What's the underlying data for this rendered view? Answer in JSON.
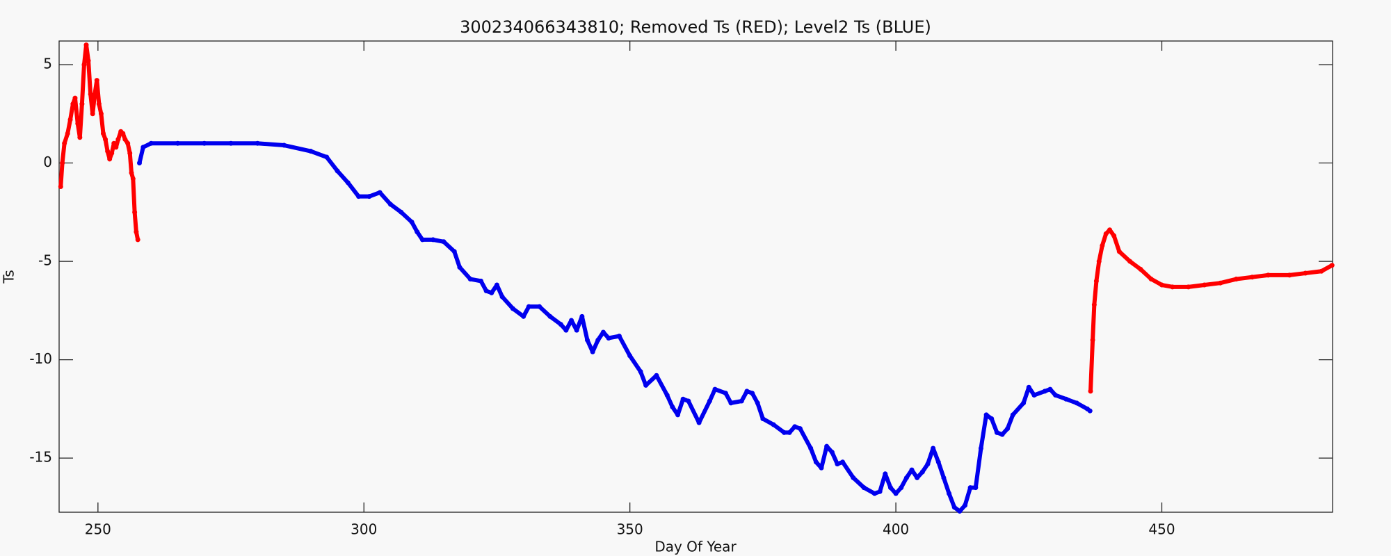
{
  "chart_data": {
    "type": "scatter",
    "title": "300234066343810; Removed Ts (RED); Level2 Ts (BLUE)",
    "x_label": "Day Of Year",
    "y_label": "Ts",
    "xlim": [
      242.7,
      482.1
    ],
    "ylim": [
      -17.75,
      6.2
    ],
    "xticks": [
      250,
      300,
      350,
      400,
      450
    ],
    "yticks": [
      -15,
      -10,
      -5,
      0,
      5
    ],
    "series": [
      {
        "color": "#ff0000",
        "x": [
          243,
          243.3,
          243.7,
          244.3,
          244.8,
          245.3,
          245.7,
          246.2,
          246.6,
          247,
          247.4,
          247.8,
          248.2,
          248.6,
          249,
          249.4,
          249.8,
          250.2,
          250.6,
          251,
          251.4,
          251.8,
          252.2,
          252.6,
          253,
          253.4,
          253.8,
          254.3,
          254.7,
          255.1,
          255.6,
          256,
          256.3,
          256.6,
          256.9,
          257.2,
          257.5
        ],
        "values": [
          -1.2,
          0,
          1,
          1.5,
          2.2,
          3,
          3.3,
          2,
          1.3,
          3,
          5,
          6,
          5.2,
          3.5,
          2.5,
          3.5,
          4.2,
          3,
          2.5,
          1.5,
          1.2,
          0.6,
          0.2,
          0.5,
          1,
          0.8,
          1.2,
          1.6,
          1.5,
          1.2,
          1,
          0.5,
          -0.5,
          -0.8,
          -2.5,
          -3.5,
          -3.9
        ]
      },
      {
        "color": "#0000ee",
        "x": [
          257.8,
          258.5,
          260,
          265,
          270,
          275,
          280,
          285,
          290,
          293,
          295,
          297,
          299,
          301,
          303,
          305,
          307,
          309,
          310,
          311,
          313,
          315,
          317,
          318,
          320,
          322,
          323,
          324,
          325,
          326,
          328,
          330,
          331,
          333,
          335,
          337,
          338,
          339,
          340,
          341,
          342,
          343,
          344,
          345,
          346,
          348,
          350,
          352,
          353,
          355,
          357,
          358,
          359,
          360,
          361,
          363,
          365,
          366,
          368,
          369,
          371,
          372,
          373,
          374,
          375,
          377,
          379,
          380,
          381,
          382,
          384,
          385,
          386,
          387,
          388,
          389,
          390,
          392,
          394,
          396,
          397,
          398,
          399,
          400,
          401,
          402,
          403,
          404,
          405,
          406,
          407,
          408,
          409,
          410,
          411,
          412,
          413,
          414,
          415,
          416,
          417,
          418,
          419,
          420,
          421,
          422,
          424,
          425,
          426,
          428,
          429,
          430,
          432,
          434,
          436,
          436.5
        ],
        "values": [
          0,
          0.8,
          1,
          1,
          1,
          1,
          1,
          0.9,
          0.6,
          0.3,
          -0.4,
          -1,
          -1.7,
          -1.7,
          -1.5,
          -2.1,
          -2.5,
          -3,
          -3.5,
          -3.9,
          -3.9,
          -4,
          -4.5,
          -5.3,
          -5.9,
          -6,
          -6.5,
          -6.6,
          -6.2,
          -6.8,
          -7.4,
          -7.8,
          -7.3,
          -7.3,
          -7.8,
          -8.2,
          -8.5,
          -8,
          -8.5,
          -7.8,
          -9,
          -9.6,
          -9,
          -8.6,
          -8.9,
          -8.8,
          -9.8,
          -10.6,
          -11.3,
          -10.8,
          -11.8,
          -12.4,
          -12.8,
          -12,
          -12.1,
          -13.2,
          -12.1,
          -11.5,
          -11.7,
          -12.2,
          -12.1,
          -11.6,
          -11.7,
          -12.2,
          -13,
          -13.3,
          -13.7,
          -13.7,
          -13.4,
          -13.5,
          -14.5,
          -15.2,
          -15.5,
          -14.4,
          -14.7,
          -15.3,
          -15.2,
          -16,
          -16.5,
          -16.8,
          -16.7,
          -15.8,
          -16.5,
          -16.8,
          -16.5,
          -16,
          -15.6,
          -16,
          -15.7,
          -15.3,
          -14.5,
          -15.2,
          -16,
          -16.8,
          -17.5,
          -17.7,
          -17.4,
          -16.5,
          -16.5,
          -14.5,
          -12.8,
          -13,
          -13.7,
          -13.8,
          -13.5,
          -12.8,
          -12.2,
          -11.4,
          -11.8,
          -11.6,
          -11.5,
          -11.8,
          -12,
          -12.2,
          -12.5,
          -12.6
        ]
      },
      {
        "color": "#ff0000",
        "x": [
          436.6,
          437,
          437.3,
          437.7,
          438.2,
          438.8,
          439.5,
          440.2,
          441,
          442,
          444,
          446,
          448,
          450,
          452,
          455,
          458,
          461,
          464,
          467,
          470,
          474,
          477,
          480,
          482
        ],
        "values": [
          -11.6,
          -9,
          -7.2,
          -6,
          -5,
          -4.2,
          -3.6,
          -3.4,
          -3.7,
          -4.5,
          -5,
          -5.4,
          -5.9,
          -6.2,
          -6.3,
          -6.3,
          -6.2,
          -6.1,
          -5.9,
          -5.8,
          -5.7,
          -5.7,
          -5.6,
          -5.5,
          -5.2
        ]
      }
    ]
  }
}
